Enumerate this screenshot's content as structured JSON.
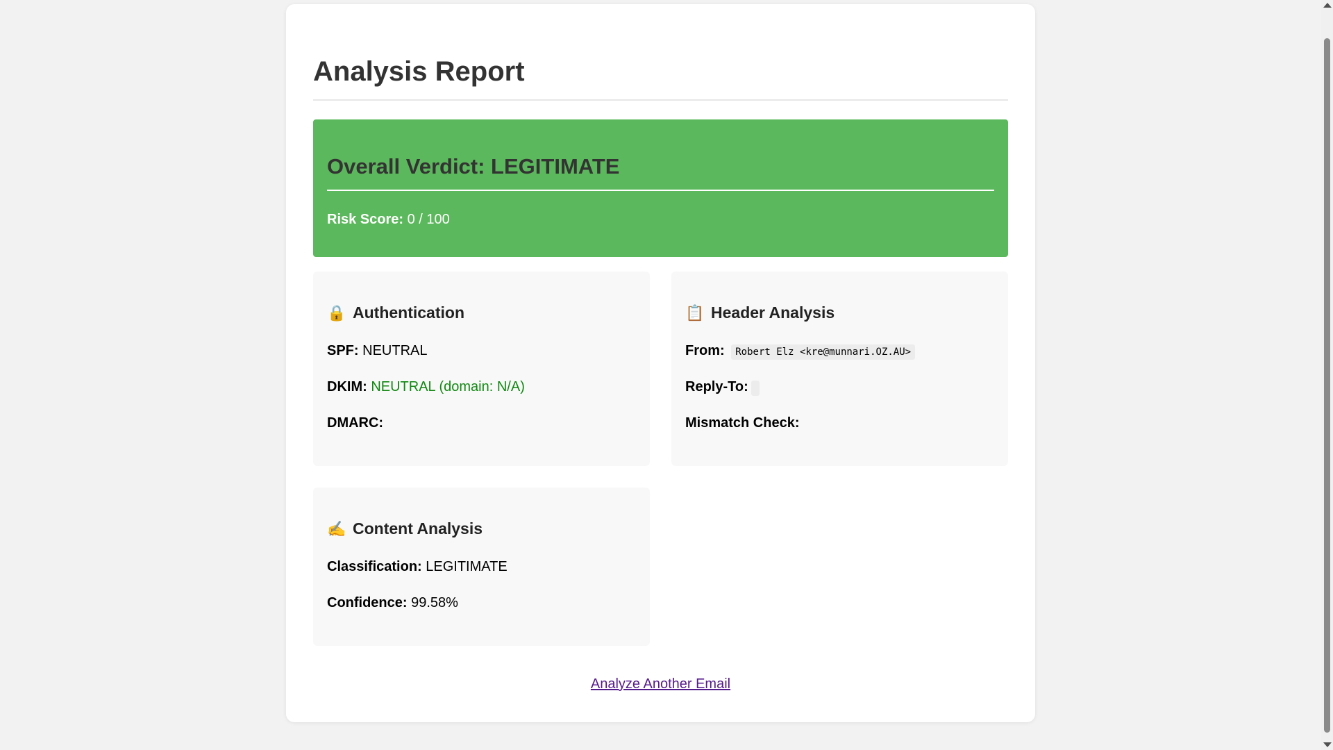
{
  "report": {
    "title": "Analysis Report",
    "verdict_title": "Overall Verdict: LEGITIMATE",
    "risk_label": "Risk Score:",
    "risk_value": "0 / 100",
    "verdict_color": "#5cb85c"
  },
  "authentication": {
    "icon": "lock-icon",
    "title": "Authentication",
    "spf_label": "SPF:",
    "spf_value": "NEUTRAL",
    "dkim_label": "DKIM:",
    "dkim_value": "NEUTRAL (domain: N/A)",
    "dmarc_label": "DMARC:",
    "dmarc_value": ""
  },
  "header_analysis": {
    "icon": "clipboard-icon",
    "title": "Header Analysis",
    "from_label": "From:",
    "from_value": "Robert Elz <kre@munnari.OZ.AU>",
    "reply_to_label": "Reply-To:",
    "reply_to_value": "",
    "mismatch_label": "Mismatch Check:",
    "mismatch_value": ""
  },
  "content_analysis": {
    "icon": "writing-hand-icon",
    "title": "Content Analysis",
    "classification_label": "Classification:",
    "classification_value": "LEGITIMATE",
    "confidence_label": "Confidence:",
    "confidence_value": "99.58%"
  },
  "actions": {
    "analyze_another": "Analyze Another Email"
  }
}
